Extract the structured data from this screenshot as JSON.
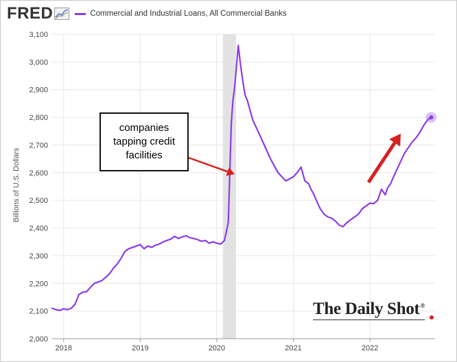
{
  "header": {
    "logo_text": "FRED",
    "series_title": "Commercial and Industrial Loans, All Commercial Banks"
  },
  "colors": {
    "series": "#8b3be8",
    "recession": "#e2e2e2",
    "arrow": "#d62020",
    "grid": "#e6e6e6"
  },
  "annotation": {
    "line1": "companies",
    "line2": "tapping credit",
    "line3": "facilities"
  },
  "watermark": {
    "text": "The Daily Shot",
    "mark": "®"
  },
  "chart_data": {
    "type": "line",
    "ylabel": "Billions of U.S. Dollars",
    "ylim": [
      2000,
      3100
    ],
    "yticks": [
      2000,
      2100,
      2200,
      2300,
      2400,
      2500,
      2600,
      2700,
      2800,
      2900,
      3000,
      3100
    ],
    "ytick_labels": [
      "2,000",
      "2,100",
      "2,200",
      "2,300",
      "2,400",
      "2,500",
      "2,600",
      "2,700",
      "2,800",
      "2,900",
      "3,000",
      "3,100"
    ],
    "xlim": [
      2017.85,
      2022.85
    ],
    "xticks": [
      2018,
      2019,
      2020,
      2021,
      2022
    ],
    "xtick_labels": [
      "2018",
      "2019",
      "2020",
      "2021",
      "2022"
    ],
    "grid": true,
    "recession_band": [
      2020.08,
      2020.25
    ],
    "series": [
      {
        "x": [
          2017.85,
          2017.9,
          2017.95,
          2018.0,
          2018.05,
          2018.1,
          2018.15,
          2018.2,
          2018.25,
          2018.3,
          2018.35,
          2018.4,
          2018.45,
          2018.5,
          2018.55,
          2018.6,
          2018.65,
          2018.7,
          2018.75,
          2018.8,
          2018.85,
          2018.9,
          2018.95,
          2019.0,
          2019.05,
          2019.1,
          2019.15,
          2019.2,
          2019.25,
          2019.3,
          2019.35,
          2019.4,
          2019.45,
          2019.5,
          2019.55,
          2019.6,
          2019.65,
          2019.7,
          2019.75,
          2019.8,
          2019.85,
          2019.9,
          2019.95,
          2020.0,
          2020.05,
          2020.1,
          2020.15,
          2020.17,
          2020.19,
          2020.21,
          2020.23,
          2020.25,
          2020.28,
          2020.31,
          2020.34,
          2020.37,
          2020.4,
          2020.43,
          2020.47,
          2020.52,
          2020.57,
          2020.62,
          2020.7,
          2020.8,
          2020.9,
          2021.0,
          2021.05,
          2021.1,
          2021.15,
          2021.2,
          2021.23,
          2021.27,
          2021.3,
          2021.35,
          2021.4,
          2021.45,
          2021.5,
          2021.55,
          2021.6,
          2021.65,
          2021.7,
          2021.75,
          2021.8,
          2021.85,
          2021.9,
          2021.95,
          2022.0,
          2022.05,
          2022.1,
          2022.15,
          2022.2,
          2022.23,
          2022.27,
          2022.3,
          2022.35,
          2022.4,
          2022.45,
          2022.5,
          2022.55,
          2022.6,
          2022.65,
          2022.7,
          2022.75,
          2022.8
        ],
        "values": [
          2110,
          2105,
          2102,
          2108,
          2105,
          2110,
          2125,
          2160,
          2168,
          2170,
          2185,
          2200,
          2205,
          2210,
          2222,
          2235,
          2255,
          2270,
          2290,
          2315,
          2325,
          2330,
          2335,
          2340,
          2325,
          2335,
          2330,
          2338,
          2342,
          2350,
          2355,
          2360,
          2370,
          2362,
          2368,
          2372,
          2365,
          2362,
          2358,
          2352,
          2355,
          2345,
          2350,
          2345,
          2342,
          2355,
          2420,
          2600,
          2780,
          2860,
          2900,
          2960,
          3060,
          2990,
          2930,
          2880,
          2860,
          2830,
          2790,
          2760,
          2730,
          2700,
          2650,
          2600,
          2570,
          2585,
          2600,
          2620,
          2570,
          2560,
          2540,
          2520,
          2500,
          2470,
          2450,
          2440,
          2435,
          2425,
          2410,
          2405,
          2420,
          2430,
          2440,
          2450,
          2470,
          2480,
          2490,
          2488,
          2500,
          2540,
          2520,
          2545,
          2560,
          2580,
          2610,
          2640,
          2670,
          2690,
          2710,
          2725,
          2745,
          2770,
          2790,
          2800
        ]
      }
    ]
  }
}
